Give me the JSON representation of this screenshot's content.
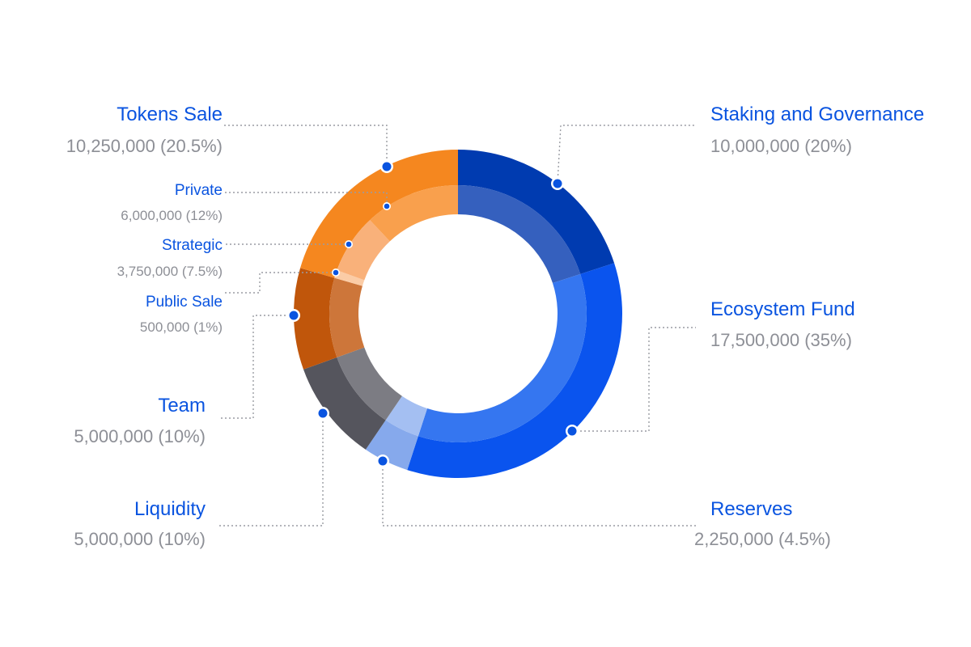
{
  "chart_data": {
    "type": "donut",
    "total": 50000000,
    "series": [
      {
        "key": "staking",
        "name": "Staking and Governance",
        "value": 10000000,
        "label": "10,000,000 (20%)",
        "outer": "#003bb0",
        "inner": "#3560be"
      },
      {
        "key": "ecosystem",
        "name": "Ecosystem Fund",
        "value": 17500000,
        "label": "17,500,000 (35%)",
        "outer": "#0a54ee",
        "inner": "#3576f0"
      },
      {
        "key": "reserves",
        "name": "Reserves",
        "value": 2250000,
        "label": "2,250,000 (4.5%)",
        "outer": "#86a9ec",
        "inner": "#a4bff2"
      },
      {
        "key": "liquidity",
        "name": "Liquidity",
        "value": 5000000,
        "label": "5,000,000 (10%)",
        "outer": "#55555d",
        "inner": "#7c7c83"
      },
      {
        "key": "team",
        "name": "Team",
        "value": 5000000,
        "label": "5,000,000 (10%)",
        "outer": "#c0560b",
        "inner": "#cd763a"
      },
      {
        "key": "tokens_sale",
        "name": "Tokens Sale",
        "value": 10250000,
        "label": "10,250,000 (20.5%)",
        "outer": "#f5871f",
        "inner": null,
        "children": [
          {
            "key": "public_sale",
            "name": "Public Sale",
            "value": 500000,
            "label": "500,000 (1%)",
            "inner": "#fbcca6"
          },
          {
            "key": "strategic",
            "name": "Strategic",
            "value": 3750000,
            "label": "3,750,000 (7.5%)",
            "inner": "#f9b17a"
          },
          {
            "key": "private",
            "name": "Private",
            "value": 6000000,
            "label": "6,000,000 (12%)",
            "inner": "#f9a04d"
          }
        ]
      }
    ],
    "marker_color": "#0a54e0",
    "leader_color": "#9a9ca3"
  }
}
